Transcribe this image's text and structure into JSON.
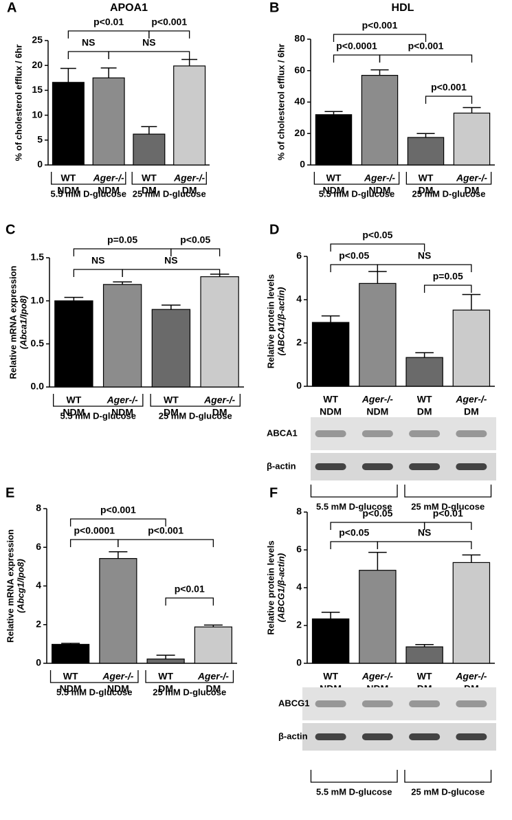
{
  "chart_data": [
    {
      "type": "bar",
      "panel": "A",
      "title": "APOA1",
      "ylabel": "% of cholesterol efflux / 6hr",
      "categories": [
        "WT",
        "Ager-/-",
        "WT",
        "Ager-/-"
      ],
      "conditions": [
        "NDM",
        "NDM",
        "DM",
        "DM"
      ],
      "values": [
        16.6,
        17.5,
        6.2,
        19.9
      ],
      "errors": [
        2.8,
        2.0,
        1.5,
        1.3
      ],
      "colors": [
        "#000000",
        "#8c8c8c",
        "#6a6a6a",
        "#cbcbcb"
      ],
      "ylim": [
        0,
        25
      ],
      "yticks": [
        0,
        5,
        10,
        15,
        20,
        25
      ],
      "annotations": [
        {
          "text": "p<0.01",
          "from": 0,
          "to": 2
        },
        {
          "text": "p<0.001",
          "from": 2,
          "to": 3
        },
        {
          "text": "NS",
          "from": 0,
          "to": 1
        },
        {
          "text": "NS",
          "from": 1,
          "to": 3
        }
      ],
      "groups": [
        "5.5 mM D-glucose",
        "25 mM D-glucose"
      ]
    },
    {
      "type": "bar",
      "panel": "B",
      "title": "HDL",
      "ylabel": "% of cholesterol efflux / 6hr",
      "categories": [
        "WT",
        "Ager-/-",
        "WT",
        "Ager-/-"
      ],
      "conditions": [
        "NDM",
        "NDM",
        "DM",
        "DM"
      ],
      "values": [
        32,
        57,
        17.5,
        33
      ],
      "errors": [
        2,
        3.5,
        2.5,
        3.5
      ],
      "colors": [
        "#000000",
        "#8c8c8c",
        "#6a6a6a",
        "#cbcbcb"
      ],
      "ylim": [
        0,
        80
      ],
      "yticks": [
        0,
        20,
        40,
        60,
        80
      ],
      "annotations": [
        {
          "text": "p<0.001",
          "from": 0,
          "to": 2
        },
        {
          "text": "p<0.0001",
          "from": 0,
          "to": 1
        },
        {
          "text": "p<0.001",
          "from": 1,
          "to": 3
        },
        {
          "text": "p<0.001",
          "from": 2,
          "to": 3
        }
      ],
      "groups": [
        "5.5 mM D-glucose",
        "25 mM D-glucose"
      ]
    },
    {
      "type": "bar",
      "panel": "C",
      "ylabel": "Relative mRNA expression",
      "ylabel2": "(Abca1/Ipo8)",
      "categories": [
        "WT",
        "Ager-/-",
        "WT",
        "Ager-/-"
      ],
      "conditions": [
        "NDM",
        "NDM",
        "DM",
        "DM"
      ],
      "values": [
        1.0,
        1.19,
        0.9,
        1.28
      ],
      "errors": [
        0.04,
        0.03,
        0.05,
        0.03
      ],
      "colors": [
        "#000000",
        "#8c8c8c",
        "#6a6a6a",
        "#cbcbcb"
      ],
      "ylim": [
        0,
        1.5
      ],
      "yticks": [
        {
          "value": 0,
          "label": "0.0"
        },
        0.5,
        {
          "value": 1,
          "label": "1.0"
        },
        1.5
      ],
      "annotations": [
        {
          "text": "p=0.05",
          "from": 0,
          "to": 2
        },
        {
          "text": "p<0.05",
          "from": 2,
          "to": 3
        },
        {
          "text": "NS",
          "from": 0,
          "to": 1
        },
        {
          "text": "NS",
          "from": 1,
          "to": 3
        }
      ],
      "groups": [
        "5.5 mM D-glucose",
        "25 mM D-glucose"
      ]
    },
    {
      "type": "bar",
      "panel": "D",
      "ylabel": "Relative protein levels",
      "ylabel2": "(ABCA1/β-actin)",
      "categories": [
        "WT",
        "Ager-/-",
        "WT",
        "Ager-/-"
      ],
      "conditions": [
        "NDM",
        "NDM",
        "DM",
        "DM"
      ],
      "values": [
        2.95,
        4.75,
        1.33,
        3.52
      ],
      "errors": [
        0.3,
        0.55,
        0.22,
        0.72
      ],
      "colors": [
        "#000000",
        "#8c8c8c",
        "#6a6a6a",
        "#cbcbcb"
      ],
      "ylim": [
        0,
        6
      ],
      "yticks": [
        0,
        2,
        4,
        6
      ],
      "annotations": [
        {
          "text": "p<0.05",
          "from": 0,
          "to": 2
        },
        {
          "text": "p<0.05",
          "from": 0,
          "to": 1
        },
        {
          "text": "NS",
          "from": 1,
          "to": 3
        },
        {
          "text": "p=0.05",
          "from": 2,
          "to": 3
        }
      ],
      "blots": [
        "ABCA1",
        "β-actin"
      ],
      "groups": [
        "5.5 mM D-glucose",
        "25 mM D-glucose"
      ]
    },
    {
      "type": "bar",
      "panel": "E",
      "ylabel": "Relative mRNA expression",
      "ylabel2": "(Abcg1/Ipo8)",
      "categories": [
        "WT",
        "Ager-/-",
        "WT",
        "Ager-/-"
      ],
      "conditions": [
        "NDM",
        "NDM",
        "DM",
        "DM"
      ],
      "values": [
        0.98,
        5.42,
        0.22,
        1.88
      ],
      "errors": [
        0.05,
        0.35,
        0.2,
        0.1
      ],
      "colors": [
        "#000000",
        "#8c8c8c",
        "#6a6a6a",
        "#cbcbcb"
      ],
      "ylim": [
        0,
        8
      ],
      "yticks": [
        0,
        2,
        4,
        6,
        8
      ],
      "annotations": [
        {
          "text": "p<0.001",
          "from": 0,
          "to": 2
        },
        {
          "text": "p<0.0001",
          "from": 0,
          "to": 1
        },
        {
          "text": "p<0.001",
          "from": 1,
          "to": 3
        },
        {
          "text": "p<0.01",
          "from": 2,
          "to": 3
        }
      ],
      "groups": [
        "5.5 mM D-glucose",
        "25 mM D-glucose"
      ]
    },
    {
      "type": "bar",
      "panel": "F",
      "ylabel": "Relative protein levels",
      "ylabel2": "(ABCG1/β-actin)",
      "categories": [
        "WT",
        "Ager-/-",
        "WT",
        "Ager-/-"
      ],
      "conditions": [
        "NDM",
        "NDM",
        "DM",
        "DM"
      ],
      "values": [
        2.35,
        4.92,
        0.87,
        5.33
      ],
      "errors": [
        0.35,
        0.95,
        0.12,
        0.4
      ],
      "colors": [
        "#000000",
        "#8c8c8c",
        "#6a6a6a",
        "#cbcbcb"
      ],
      "ylim": [
        0,
        8
      ],
      "yticks": [
        0,
        2,
        4,
        6,
        8
      ],
      "annotations": [
        {
          "text": "p<0.05",
          "from": 0,
          "to": 2
        },
        {
          "text": "p<0.01",
          "from": 2,
          "to": 3
        },
        {
          "text": "p<0.05",
          "from": 0,
          "to": 1
        },
        {
          "text": "NS",
          "from": 1,
          "to": 3
        }
      ],
      "blots": [
        "ABCG1",
        "β-actin"
      ],
      "groups": [
        "5.5 mM D-glucose",
        "25 mM D-glucose"
      ]
    }
  ]
}
